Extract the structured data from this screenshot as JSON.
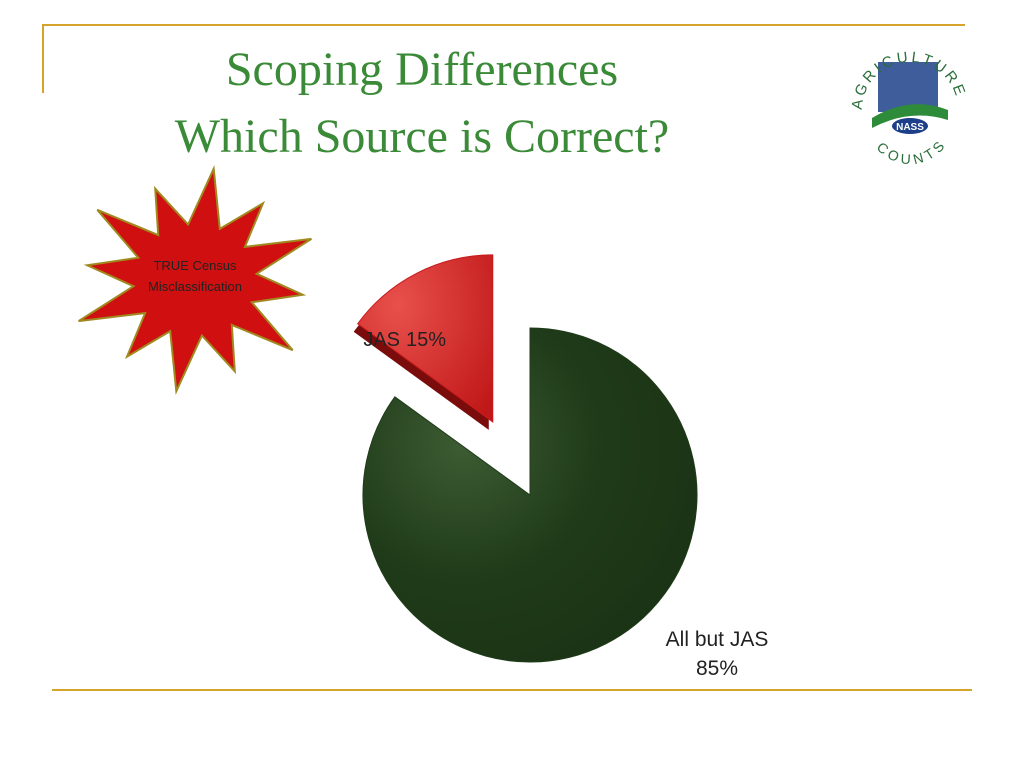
{
  "chart_data": {
    "type": "pie",
    "title": "Scoping Differences",
    "subtitle": "Which Source is Correct?",
    "categories": [
      "All but JAS",
      "JAS"
    ],
    "values": [
      85,
      15
    ],
    "value_labels": [
      "85%",
      "15%"
    ],
    "colors": [
      "#1f3b19",
      "#c8191b"
    ],
    "exploded": [
      false,
      true
    ],
    "annotations": [
      "TRUE Census",
      "Misclassification"
    ]
  },
  "logo": {
    "top": "AGRICULTURE",
    "center": "NASS",
    "bottom": "COUNTS"
  }
}
